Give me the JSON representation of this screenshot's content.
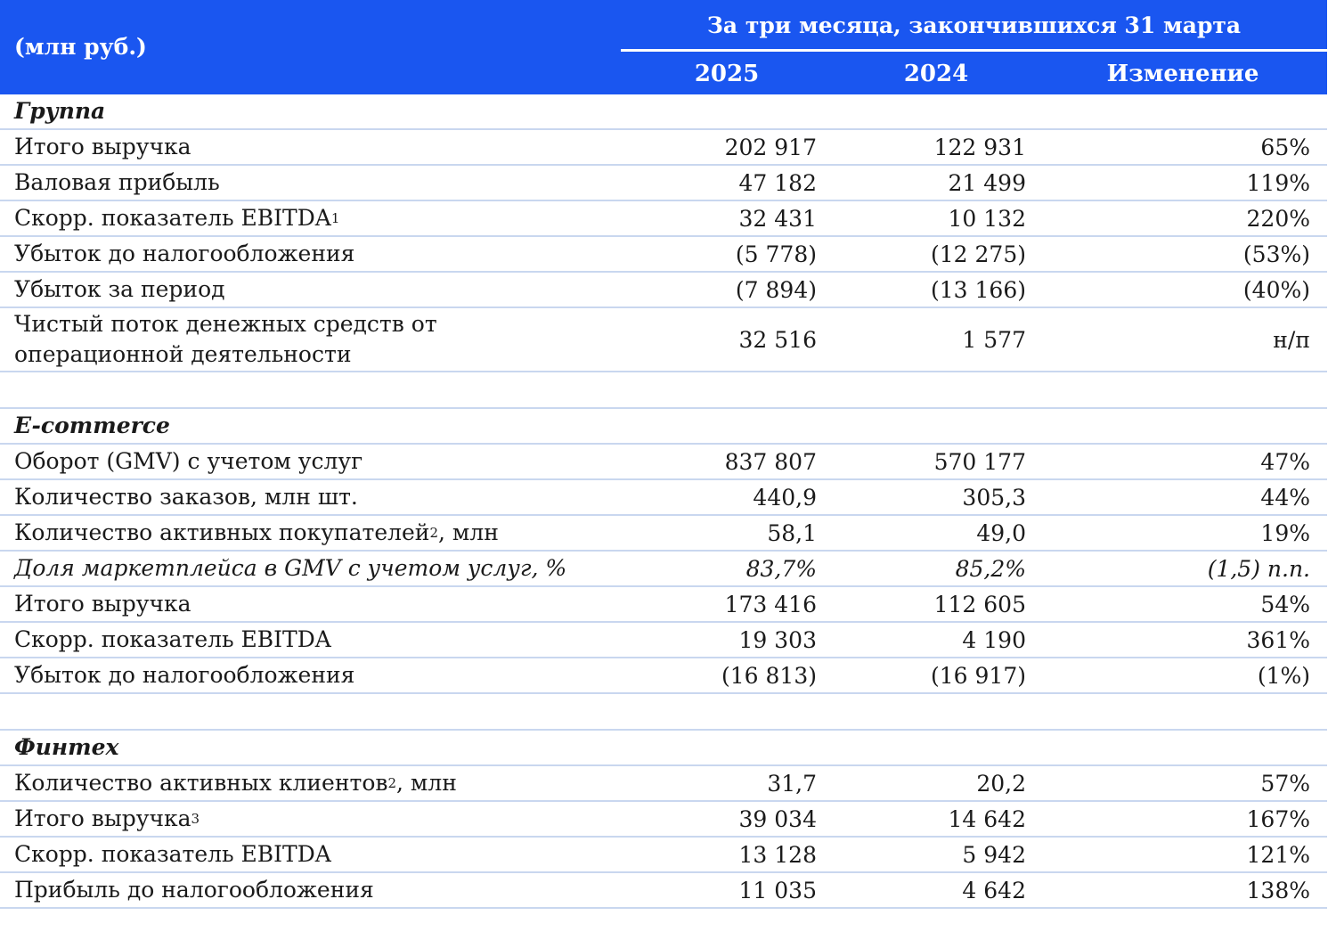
{
  "header": {
    "unit_label": "(млн руб.)",
    "period_label": "За три месяца, закончившихся 31 марта",
    "col_2025": "2025",
    "col_2024": "2024",
    "col_change": "Изменение"
  },
  "group": {
    "title": "Группа",
    "rows": [
      {
        "label": "Итого выручка",
        "v2025": "202 917",
        "v2024": "122 931",
        "change": "65%"
      },
      {
        "label": "Валовая прибыль",
        "v2025": "47 182",
        "v2024": "21 499",
        "change": "119%"
      },
      {
        "label": "Скорр. показатель EBITDA",
        "sup": "1",
        "v2025": "32 431",
        "v2024": "10 132",
        "change": "220%"
      },
      {
        "label": "Убыток до налогообложения",
        "v2025": "(5 778)",
        "v2024": "(12 275)",
        "change": "(53%)"
      },
      {
        "label": "Убыток за период",
        "v2025": "(7 894)",
        "v2024": "(13 166)",
        "change": "(40%)"
      },
      {
        "label_line1": "Чистый поток денежных средств от",
        "label_line2": "операционной деятельности",
        "v2025": "32 516",
        "v2024": "1 577",
        "change": "н/п"
      }
    ]
  },
  "ecommerce": {
    "title": "E-commerce",
    "rows": [
      {
        "label": "Оборот (GMV) с учетом услуг",
        "v2025": "837 807",
        "v2024": "570 177",
        "change": "47%"
      },
      {
        "label": "Количество заказов, млн шт.",
        "v2025": "440,9",
        "v2024": "305,3",
        "change": "44%"
      },
      {
        "label": "Количество активных покупателей",
        "sup": "2",
        "label_suffix": ", млн",
        "v2025": "58,1",
        "v2024": "49,0",
        "change": "19%"
      },
      {
        "label": "Доля маркетплейса в GMV с учетом услуг, %",
        "v2025": "83,7%",
        "v2024": "85,2%",
        "change": "(1,5) п.п."
      },
      {
        "label": "Итого выручка",
        "v2025": "173 416",
        "v2024": "112 605",
        "change": "54%"
      },
      {
        "label": "Скорр. показатель EBITDA",
        "v2025": "19 303",
        "v2024": "4 190",
        "change": "361%"
      },
      {
        "label": "Убыток до налогообложения",
        "v2025": "(16 813)",
        "v2024": "(16 917)",
        "change": "(1%)"
      }
    ]
  },
  "fintech": {
    "title": "Финтех",
    "rows": [
      {
        "label": "Количество активных клиентов",
        "sup": "2",
        "label_suffix": ", млн",
        "v2025": "31,7",
        "v2024": "20,2",
        "change": "57%"
      },
      {
        "label": "Итого выручка",
        "sup": "3",
        "v2025": "39 034",
        "v2024": "14 642",
        "change": "167%"
      },
      {
        "label": "Скорр. показатель EBITDA",
        "v2025": "13 128",
        "v2024": "5 942",
        "change": "121%"
      },
      {
        "label": "Прибыль до налогообложения",
        "v2025": "11 035",
        "v2024": "4 642",
        "change": "138%"
      }
    ]
  }
}
